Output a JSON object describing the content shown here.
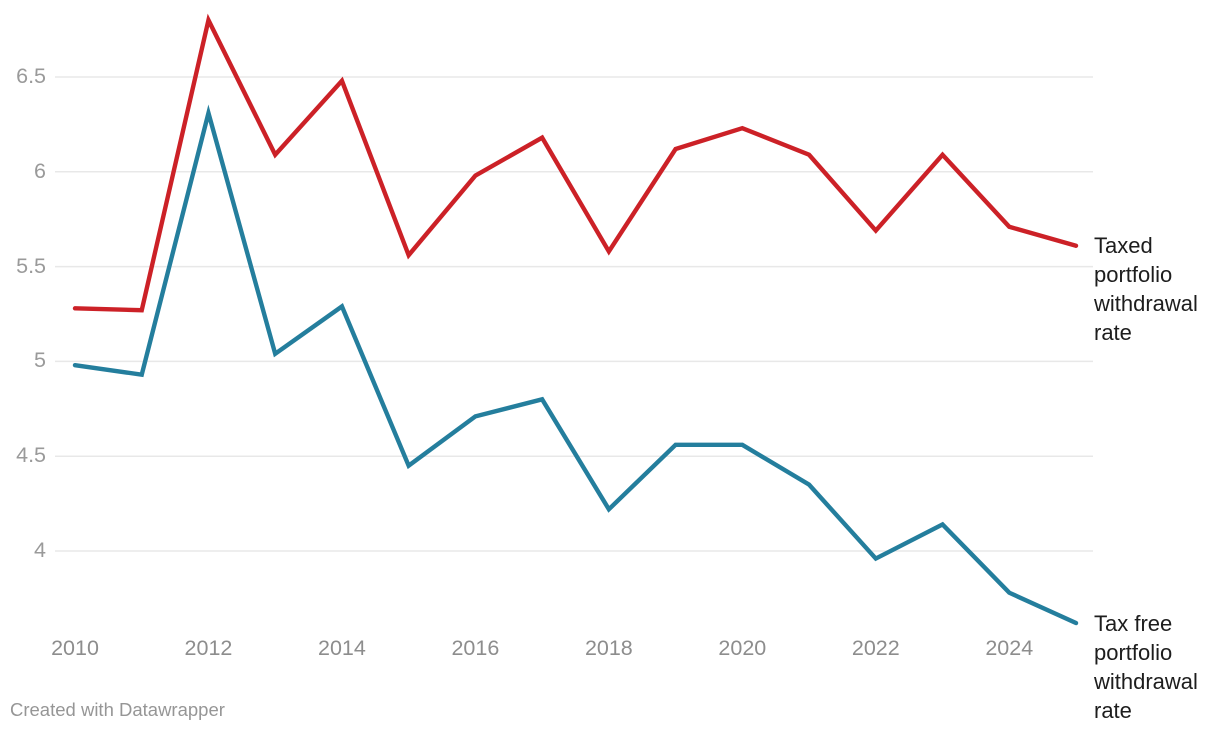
{
  "chart_data": {
    "type": "line",
    "title": "",
    "x": [
      2010,
      2011,
      2012,
      2013,
      2014,
      2015,
      2016,
      2017,
      2018,
      2019,
      2020,
      2021,
      2022,
      2023,
      2024,
      2025
    ],
    "series": [
      {
        "id": "taxed",
        "name": "Taxed portfolio withdrawal rate",
        "color": "#cc2127",
        "values": [
          5.28,
          5.27,
          6.8,
          6.09,
          6.48,
          5.56,
          5.98,
          6.18,
          5.58,
          6.12,
          6.23,
          6.09,
          5.69,
          6.09,
          5.71,
          5.61
        ]
      },
      {
        "id": "taxfree",
        "name": "Tax free portfolio withdrawal rate",
        "color": "#247e9d",
        "values": [
          4.98,
          4.93,
          6.31,
          5.04,
          5.29,
          4.45,
          4.71,
          4.8,
          4.22,
          4.56,
          4.56,
          4.35,
          3.96,
          4.14,
          3.78,
          3.62
        ]
      }
    ],
    "xlabel": "",
    "ylabel": "",
    "xlim": [
      2010,
      2025
    ],
    "ylim": [
      3.55,
      6.91
    ],
    "xticks": {
      "values": [
        2010,
        2012,
        2014,
        2016,
        2018,
        2020,
        2022,
        2024
      ],
      "labels": [
        "2010",
        "2012",
        "2014",
        "2016",
        "2018",
        "2020",
        "2022",
        "2024"
      ]
    },
    "yticks": {
      "values": [
        4,
        4.5,
        5,
        5.5,
        6,
        6.5
      ],
      "labels": [
        "4",
        "4.5",
        "5",
        "5.5",
        "6",
        "6.5"
      ]
    },
    "grid": "horizontal",
    "legend_position": "direct-labels-right-of-line-ends"
  },
  "footer": {
    "credit": "Created with Datawrapper"
  },
  "colors": {
    "taxed_line": "#cc2127",
    "taxfree_line": "#247e9d",
    "gridline": "#e8e8e8",
    "y_axis_text": "#9a9a9a",
    "x_axis_text": "#8d8d8d",
    "series_label_text": "#1d1d1d",
    "credit_text": "#969696",
    "background": "#ffffff"
  }
}
